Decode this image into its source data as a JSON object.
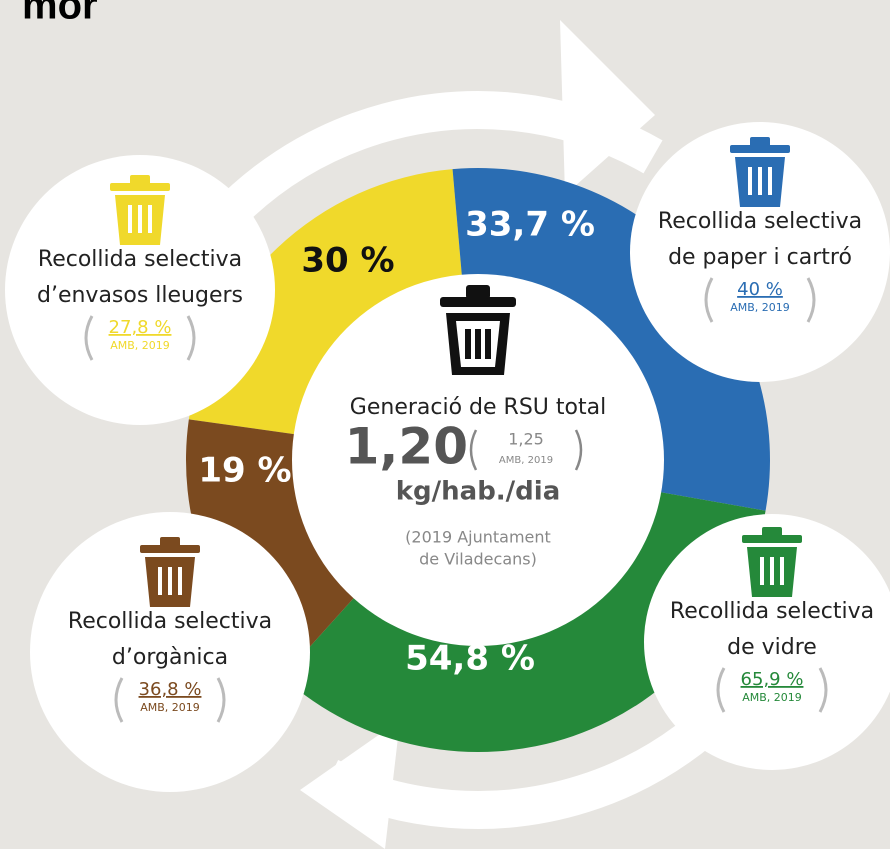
{
  "header": {
    "title": "mor"
  },
  "center": {
    "title": "Generació de RSU total",
    "value": "1,20",
    "comparison": "1,25",
    "comparison_source": "AMB, 2019",
    "unit": "kg/hab./dia",
    "source_lines": [
      "(2019 Ajuntament",
      "de Viladecans)"
    ]
  },
  "fractions": [
    {
      "label": "30 %",
      "name_lines": [
        "Recollida selectiva",
        "d’envasos lleugers"
      ],
      "comparison": "27,8 %",
      "comparison_source": "AMB, 2019",
      "color": "#f0d92b"
    },
    {
      "label": "33,7 %",
      "name_lines": [
        "Recollida selectiva",
        "de paper i cartró"
      ],
      "comparison": "40 %",
      "comparison_source": "AMB, 2019",
      "color": "#2a6db3"
    },
    {
      "label": "54,8 %",
      "name_lines": [
        "Recollida selectiva",
        "de vidre"
      ],
      "comparison": "65,9 %",
      "comparison_source": "AMB, 2019",
      "color": "#25893a"
    },
    {
      "label": "19 %",
      "name_lines": [
        "Recollida selectiva",
        "d’orgànica"
      ],
      "comparison": "36,8 %",
      "comparison_source": "AMB, 2019",
      "color": "#7b4a1f"
    }
  ]
}
